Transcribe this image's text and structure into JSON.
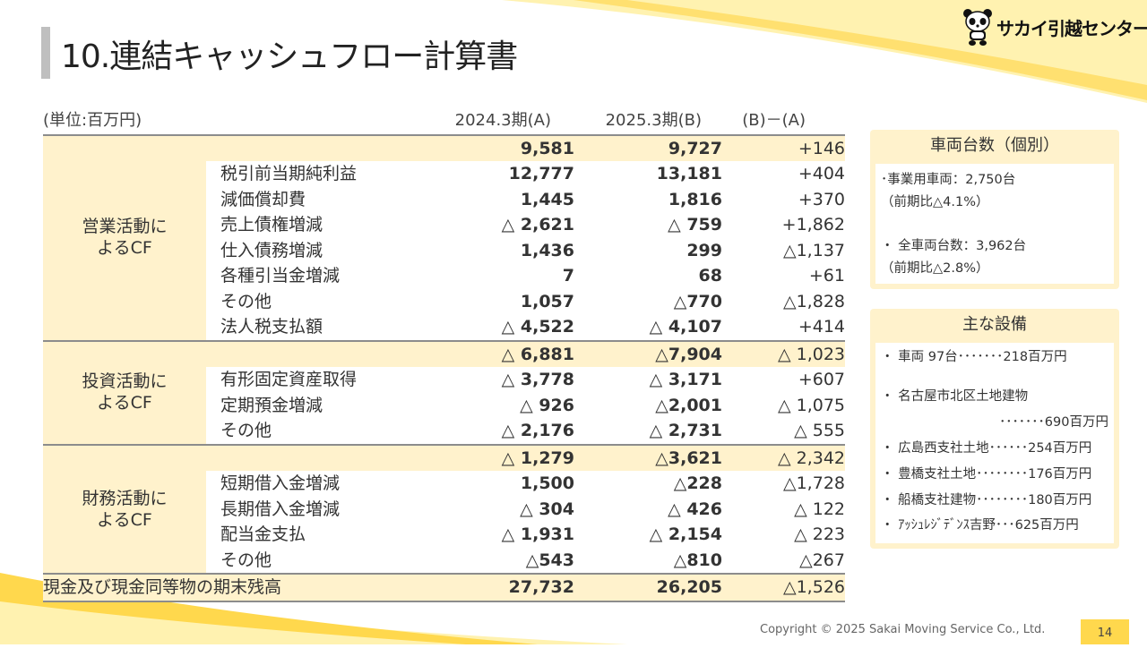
{
  "slide": {
    "title": "10.連結キャッシュフロー計算書",
    "logo_text": "サカイ引越センター",
    "footer": "Copyright © 2025 Sakai Moving Service Co., Ltd.",
    "page_number": "14"
  },
  "colors": {
    "accent_yellow": "#ffd84d",
    "cell_fill": "#fff2cc",
    "rule": "#8c8c8c"
  },
  "table": {
    "unit": "(単位:百万円)",
    "headers": [
      "2024.3期(A)",
      "2025.3期(B)",
      "(B)－(A)"
    ],
    "sections": [
      {
        "category": [
          "営業活動に",
          "よるCF"
        ],
        "subtotal": [
          "9,581",
          "9,727",
          "+146"
        ],
        "rows": [
          {
            "item": "税引前当期純利益",
            "a": "12,777",
            "b": "13,181",
            "diff": "+404"
          },
          {
            "item": "減価償却費",
            "a": "1,445",
            "b": "1,816",
            "diff": "+370"
          },
          {
            "item": "売上債権増減",
            "a": "△ 2,621",
            "b": "△ 759",
            "diff": "+1,862"
          },
          {
            "item": "仕入債務増減",
            "a": "1,436",
            "b": "299",
            "diff": "△1,137"
          },
          {
            "item": "各種引当金増減",
            "a": "7",
            "b": "68",
            "diff": "+61"
          },
          {
            "item": "その他",
            "a": "1,057",
            "b": "△770",
            "diff": "△1,828"
          },
          {
            "item": "法人税支払額",
            "a": "△ 4,522",
            "b": "△ 4,107",
            "diff": "+414"
          }
        ]
      },
      {
        "category": [
          "投資活動に",
          "よるCF"
        ],
        "subtotal": [
          "△ 6,881",
          "△7,904",
          "△ 1,023"
        ],
        "rows": [
          {
            "item": "有形固定資産取得",
            "a": "△ 3,778",
            "b": "△ 3,171",
            "diff": "+607"
          },
          {
            "item": "定期預金増減",
            "a": "△ 926",
            "b": "△2,001",
            "diff": "△ 1,075"
          },
          {
            "item": "その他",
            "a": "△ 2,176",
            "b": "△ 2,731",
            "diff": "△ 555"
          }
        ]
      },
      {
        "category": [
          "財務活動に",
          "よるCF"
        ],
        "subtotal": [
          "△ 1,279",
          "△3,621",
          "△ 2,342"
        ],
        "rows": [
          {
            "item": "短期借入金増減",
            "a": "1,500",
            "b": "△228",
            "diff": "△1,728"
          },
          {
            "item": "長期借入金増減",
            "a": "△ 304",
            "b": "△ 426",
            "diff": "△ 122"
          },
          {
            "item": "配当金支払",
            "a": "△ 1,931",
            "b": "△ 2,154",
            "diff": "△ 223"
          },
          {
            "item": "その他",
            "a": "△543",
            "b": "△810",
            "diff": "△267"
          }
        ]
      }
    ],
    "ending": {
      "label": "現金及び現金同等物の期末残高",
      "a": "27,732",
      "b": "26,205",
      "diff": "△1,526"
    }
  },
  "vehicles": {
    "heading": "車両台数（個別）",
    "line1": "･事業用車両：2,750台",
    "line2": "（前期比△4.1%）",
    "line3": "・ 全車両台数：3,962台",
    "line4": "（前期比△2.8%）"
  },
  "equipment": {
    "heading": "主な設備",
    "line1": "・ 車両 97台･･･････218百万円",
    "line2": "・ 名古屋市北区土地建物",
    "line3": "･･･････690百万円",
    "line4": "・ 広島西支社土地･･････254百万円",
    "line5": "・ 豊橋支社土地････････176百万円",
    "line6": "・ 船橋支社建物････････180百万円",
    "line7": "・ ｱｯｼｭﾚｼﾞﾃﾞﾝｽ吉野･･･625百万円"
  }
}
